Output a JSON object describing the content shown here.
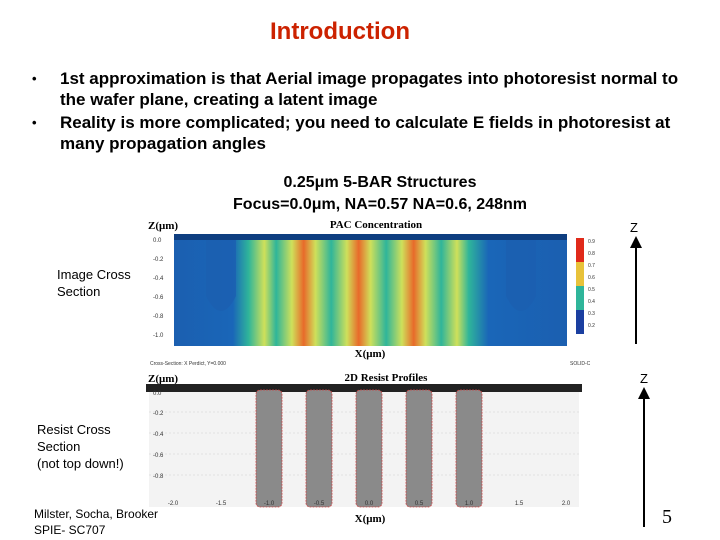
{
  "slide": {
    "title": "Introduction",
    "bullets": [
      "1st approximation is that Aerial image propagates into photoresist normal to the wafer plane, creating a latent image",
      "Reality is more complicated; you need to calculate E fields in photoresist at many propagation angles"
    ],
    "bullet_marker": "•",
    "subhead_line1": "0.25μm 5-BAR Structures",
    "subhead_line2": "Focus=0.0μm, NA=0.57 NA=0.6, 248nm",
    "label_image_cross": "Image Cross Section",
    "label_resist_cross_1": "Resist Cross",
    "label_resist_cross_2": "Section",
    "label_resist_cross_3": "(not top down!)",
    "credit_line1": "Milster, Socha, Brooker",
    "credit_line2": "SPIE- SC707",
    "page_number": "5",
    "z_label_top": "Z",
    "z_label_bottom": "Z"
  },
  "top_plot": {
    "y_axis_label": "Z(μm)",
    "title": "PAC Concentration",
    "x_axis_label": "X(μm)",
    "y_ticks": [
      "0.0",
      "-0.2",
      "-0.4",
      "-0.6",
      "-0.8",
      "-1.0"
    ],
    "footer_left": "Cross-Section: X Perdict, Y=0.000",
    "footer_right": "SOLID-C",
    "colorbar_ticks": [
      "0.9",
      "0.8",
      "0.7",
      "0.6",
      "0.5",
      "0.4",
      "0.3",
      "0.2"
    ]
  },
  "bottom_plot": {
    "y_axis_label": "Z(μm)",
    "title": "2D Resist Profiles",
    "x_axis_label": "X(μm)",
    "y_ticks": [
      "0.0",
      "-0.2",
      "-0.4",
      "-0.6",
      "-0.8"
    ],
    "x_ticks": [
      "-2.0",
      "-1.5",
      "-1.0",
      "-0.5",
      "0.0",
      "0.5",
      "1.0",
      "1.5",
      "2.0"
    ]
  }
}
